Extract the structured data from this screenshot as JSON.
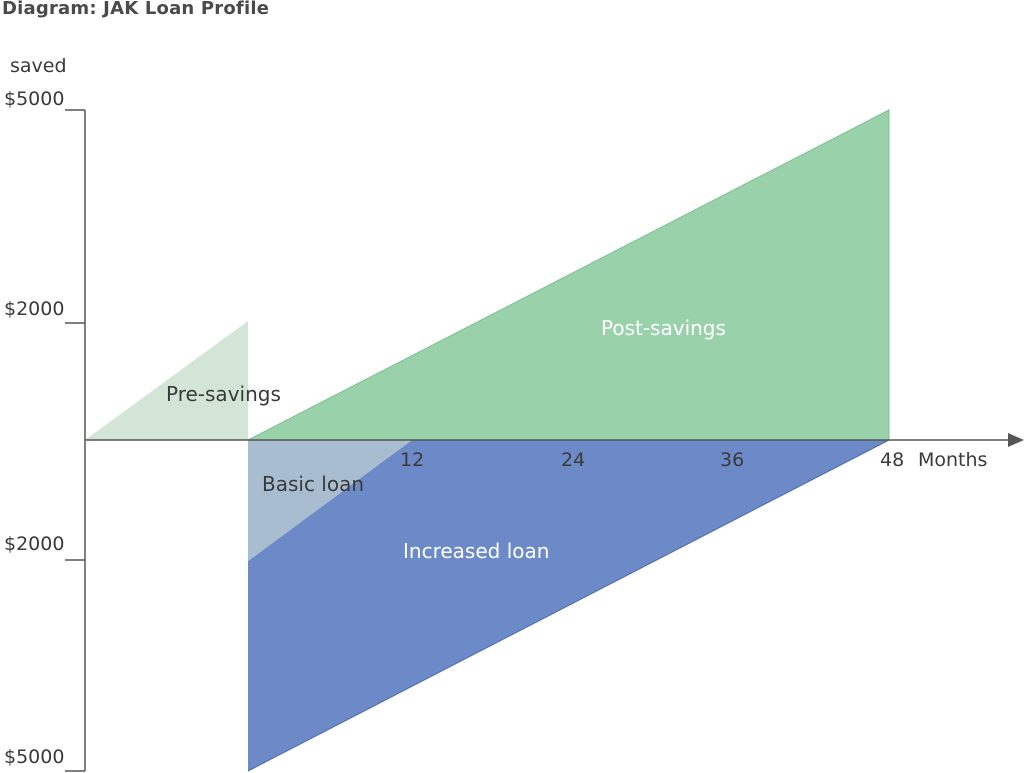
{
  "title": "Diagram: JAK Loan Profile",
  "axis": {
    "y_label": "saved",
    "x_unit": "Months",
    "y_ticks_top": [
      "$5000",
      "$2000"
    ],
    "y_ticks_bottom": [
      "$2000",
      "$5000"
    ],
    "x_ticks": [
      "12",
      "24",
      "36",
      "48"
    ]
  },
  "regions": {
    "pre_savings": "Pre-savings",
    "post_savings": "Post-savings",
    "basic_loan": "Basic loan",
    "increased_loan": "Increased loan"
  },
  "colors": {
    "pre_savings": "#d3e5d7",
    "post_savings": "#99d1aa",
    "basic_loan": "#a8bed0",
    "increased_loan": "#6c8ac7",
    "axis": "#555555"
  },
  "chart_data": {
    "type": "area",
    "title": "Diagram: JAK Loan Profile",
    "ylabel": "saved",
    "xlabel": "Months",
    "xlim": [
      0,
      48
    ],
    "ylim": [
      -5000,
      5000
    ],
    "series": [
      {
        "name": "Pre-savings",
        "x": [
          -12,
          0,
          0
        ],
        "y": [
          0,
          2000,
          0
        ]
      },
      {
        "name": "Post-savings",
        "x": [
          0,
          48,
          48
        ],
        "y": [
          0,
          5000,
          0
        ]
      },
      {
        "name": "Basic loan",
        "x": [
          0,
          12,
          0
        ],
        "y": [
          -2000,
          0,
          0
        ]
      },
      {
        "name": "Increased loan",
        "x": [
          0,
          48,
          48,
          0
        ],
        "y": [
          -5000,
          0,
          0,
          -2000
        ]
      }
    ]
  }
}
